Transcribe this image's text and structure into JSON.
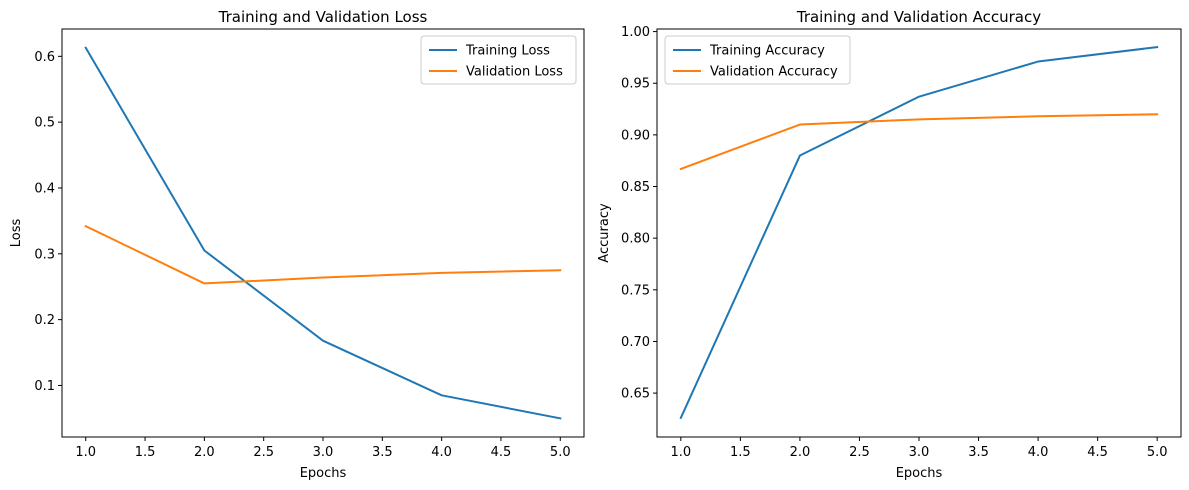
{
  "chart_data": [
    {
      "type": "line",
      "title": "Training and Validation Loss",
      "xlabel": "Epochs",
      "ylabel": "Loss",
      "x": [
        1,
        2,
        3,
        4,
        5
      ],
      "xlim": [
        0.8,
        5.2
      ],
      "ylim": [
        0.0217,
        0.6415
      ],
      "xticks": [
        1.0,
        1.5,
        2.0,
        2.5,
        3.0,
        3.5,
        4.0,
        4.5,
        5.0
      ],
      "xtick_labels": [
        "1.0",
        "1.5",
        "2.0",
        "2.5",
        "3.0",
        "3.5",
        "4.0",
        "4.5",
        "5.0"
      ],
      "yticks": [
        0.1,
        0.2,
        0.3,
        0.4,
        0.5,
        0.6
      ],
      "ytick_labels": [
        "0.1",
        "0.2",
        "0.3",
        "0.4",
        "0.5",
        "0.6"
      ],
      "legend_position": "top-right",
      "series": [
        {
          "name": "Training Loss",
          "color": "#1f77b4",
          "values": [
            0.613,
            0.305,
            0.168,
            0.085,
            0.05
          ]
        },
        {
          "name": "Validation Loss",
          "color": "#ff7f0e",
          "values": [
            0.342,
            0.255,
            0.264,
            0.271,
            0.275
          ]
        }
      ]
    },
    {
      "type": "line",
      "title": "Training and Validation Accuracy",
      "xlabel": "Epochs",
      "ylabel": "Accuracy",
      "x": [
        1,
        2,
        3,
        4,
        5
      ],
      "xlim": [
        0.8,
        5.2
      ],
      "ylim": [
        0.6075,
        1.0025
      ],
      "xticks": [
        1.0,
        1.5,
        2.0,
        2.5,
        3.0,
        3.5,
        4.0,
        4.5,
        5.0
      ],
      "xtick_labels": [
        "1.0",
        "1.5",
        "2.0",
        "2.5",
        "3.0",
        "3.5",
        "4.0",
        "4.5",
        "5.0"
      ],
      "yticks": [
        0.65,
        0.7,
        0.75,
        0.8,
        0.85,
        0.9,
        0.95,
        1.0
      ],
      "ytick_labels": [
        "0.65",
        "0.70",
        "0.75",
        "0.80",
        "0.85",
        "0.90",
        "0.95",
        "1.00"
      ],
      "legend_position": "top-left",
      "series": [
        {
          "name": "Training Accuracy",
          "color": "#1f77b4",
          "values": [
            0.626,
            0.88,
            0.937,
            0.971,
            0.985
          ]
        },
        {
          "name": "Validation Accuracy",
          "color": "#ff7f0e",
          "values": [
            0.867,
            0.91,
            0.915,
            0.918,
            0.92
          ]
        }
      ]
    }
  ]
}
